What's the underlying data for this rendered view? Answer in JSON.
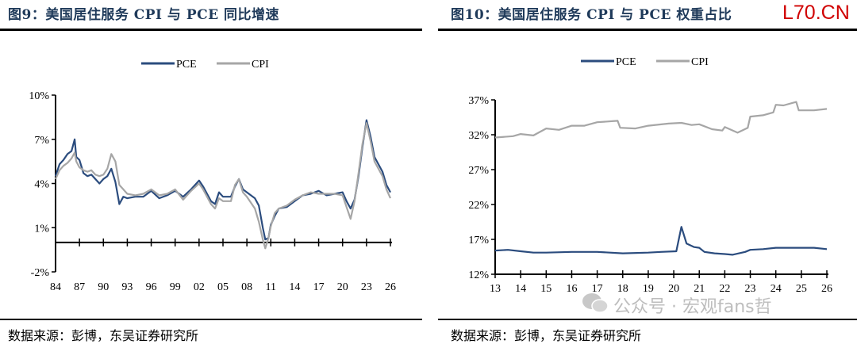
{
  "left": {
    "title": "图9：美国居住服务 CPI 与 PCE 同比增速",
    "source": "数据来源：彭博，东吴证券研究所"
  },
  "right": {
    "title": "图10：美国居住服务 CPI 与 PCE 权重占比",
    "source": "数据来源：彭博，东吴证券研究所"
  },
  "logo": "L70.CN",
  "watermark": "公众号 · 宏观fans哲",
  "colors": {
    "pce": "#2b4c7e",
    "cpi": "#a6a6a6"
  },
  "chart_data": [
    {
      "type": "line",
      "title": "美国居住服务 CPI 与 PCE 同比增速",
      "xlabel": "",
      "ylabel": "",
      "xlim": [
        1984,
        2026
      ],
      "ylim": [
        -2,
        10
      ],
      "yticks": [
        -2,
        1,
        4,
        7,
        10
      ],
      "ytick_labels": [
        "-2%",
        "1%",
        "4%",
        "7%",
        "10%"
      ],
      "xticks": [
        1984,
        1987,
        1990,
        1993,
        1996,
        1999,
        2002,
        2005,
        2008,
        2011,
        2014,
        2017,
        2020,
        2023,
        2026
      ],
      "xtick_labels": [
        "84",
        "87",
        "90",
        "93",
        "96",
        "99",
        "02",
        "05",
        "08",
        "11",
        "14",
        "17",
        "20",
        "23",
        "26"
      ],
      "legend": "top-center",
      "series": [
        {
          "name": "PCE",
          "points": [
            [
              1984,
              4.5
            ],
            [
              1984.5,
              5.3
            ],
            [
              1985,
              5.6
            ],
            [
              1985.5,
              6.0
            ],
            [
              1986,
              6.2
            ],
            [
              1986.4,
              7.0
            ],
            [
              1986.6,
              5.8
            ],
            [
              1987,
              5.6
            ],
            [
              1987.5,
              4.7
            ],
            [
              1988,
              4.5
            ],
            [
              1988.5,
              4.6
            ],
            [
              1989,
              4.3
            ],
            [
              1989.5,
              4.0
            ],
            [
              1990,
              4.3
            ],
            [
              1990.5,
              4.5
            ],
            [
              1991,
              5.0
            ],
            [
              1991.5,
              4.1
            ],
            [
              1992,
              2.6
            ],
            [
              1992.5,
              3.1
            ],
            [
              1993,
              3.0
            ],
            [
              1994,
              3.1
            ],
            [
              1995,
              3.1
            ],
            [
              1996,
              3.5
            ],
            [
              1997,
              3.0
            ],
            [
              1998,
              3.2
            ],
            [
              1999,
              3.5
            ],
            [
              2000,
              3.1
            ],
            [
              2001,
              3.6
            ],
            [
              2002,
              4.2
            ],
            [
              2002.5,
              3.8
            ],
            [
              2003.5,
              2.8
            ],
            [
              2004,
              2.6
            ],
            [
              2004.5,
              3.4
            ],
            [
              2005,
              3.1
            ],
            [
              2006,
              3.1
            ],
            [
              2006.5,
              3.8
            ],
            [
              2007,
              4.3
            ],
            [
              2007.5,
              3.6
            ],
            [
              2008,
              3.4
            ],
            [
              2009,
              3.0
            ],
            [
              2009.5,
              2.5
            ],
            [
              2010,
              1.0
            ],
            [
              2010.3,
              0.2
            ],
            [
              2010.7,
              0.3
            ],
            [
              2011,
              1.2
            ],
            [
              2011.5,
              1.8
            ],
            [
              2012,
              2.3
            ],
            [
              2013,
              2.4
            ],
            [
              2014,
              2.8
            ],
            [
              2015,
              3.2
            ],
            [
              2016,
              3.3
            ],
            [
              2017,
              3.5
            ],
            [
              2018,
              3.2
            ],
            [
              2019,
              3.3
            ],
            [
              2020,
              3.4
            ],
            [
              2020.5,
              2.8
            ],
            [
              2021,
              2.3
            ],
            [
              2021.5,
              2.9
            ],
            [
              2022,
              4.5
            ],
            [
              2022.5,
              6.5
            ],
            [
              2023,
              8.3
            ],
            [
              2023.5,
              7.2
            ],
            [
              2024,
              5.8
            ],
            [
              2025,
              4.8
            ],
            [
              2025.5,
              3.9
            ],
            [
              2026,
              3.4
            ]
          ]
        },
        {
          "name": "CPI",
          "points": [
            [
              1984,
              4.3
            ],
            [
              1984.5,
              4.9
            ],
            [
              1985,
              5.2
            ],
            [
              1985.5,
              5.4
            ],
            [
              1986,
              5.7
            ],
            [
              1986.4,
              6.1
            ],
            [
              1986.6,
              5.5
            ],
            [
              1987,
              5.1
            ],
            [
              1987.5,
              4.9
            ],
            [
              1988,
              4.8
            ],
            [
              1988.5,
              4.9
            ],
            [
              1989,
              4.6
            ],
            [
              1989.5,
              4.5
            ],
            [
              1990,
              4.6
            ],
            [
              1990.5,
              5.0
            ],
            [
              1991,
              6.0
            ],
            [
              1991.5,
              5.5
            ],
            [
              1992,
              3.9
            ],
            [
              1992.5,
              3.6
            ],
            [
              1993,
              3.3
            ],
            [
              1994,
              3.2
            ],
            [
              1995,
              3.3
            ],
            [
              1996,
              3.6
            ],
            [
              1997,
              3.2
            ],
            [
              1998,
              3.3
            ],
            [
              1999,
              3.6
            ],
            [
              2000,
              2.9
            ],
            [
              2001,
              3.5
            ],
            [
              2002,
              4.0
            ],
            [
              2002.5,
              3.6
            ],
            [
              2003.5,
              2.6
            ],
            [
              2004,
              2.3
            ],
            [
              2004.5,
              3.0
            ],
            [
              2005,
              2.8
            ],
            [
              2006,
              2.8
            ],
            [
              2006.5,
              3.9
            ],
            [
              2007,
              4.3
            ],
            [
              2007.5,
              3.4
            ],
            [
              2008,
              3.1
            ],
            [
              2009,
              2.3
            ],
            [
              2009.5,
              1.4
            ],
            [
              2010,
              0.2
            ],
            [
              2010.3,
              -0.4
            ],
            [
              2010.7,
              0.3
            ],
            [
              2011,
              1.1
            ],
            [
              2011.5,
              2.0
            ],
            [
              2012,
              2.3
            ],
            [
              2013,
              2.5
            ],
            [
              2014,
              2.9
            ],
            [
              2015,
              3.2
            ],
            [
              2016,
              3.4
            ],
            [
              2017,
              3.3
            ],
            [
              2018,
              3.3
            ],
            [
              2019,
              3.3
            ],
            [
              2020,
              3.2
            ],
            [
              2020.5,
              2.4
            ],
            [
              2021,
              1.6
            ],
            [
              2021.5,
              2.8
            ],
            [
              2022,
              4.7
            ],
            [
              2022.5,
              6.7
            ],
            [
              2023,
              8.1
            ],
            [
              2023.5,
              6.9
            ],
            [
              2024,
              5.5
            ],
            [
              2025,
              4.5
            ],
            [
              2025.5,
              3.6
            ],
            [
              2026,
              3.0
            ]
          ]
        }
      ]
    },
    {
      "type": "line",
      "title": "美国居住服务 CPI 与 PCE 权重占比",
      "xlabel": "",
      "ylabel": "",
      "xlim": [
        2013,
        2026
      ],
      "ylim": [
        12,
        37
      ],
      "yticks": [
        12,
        17,
        22,
        27,
        32,
        37
      ],
      "ytick_labels": [
        "12%",
        "17%",
        "22%",
        "27%",
        "32%",
        "37%"
      ],
      "xticks": [
        2013,
        2014,
        2015,
        2016,
        2017,
        2018,
        2019,
        2020,
        2021,
        2022,
        2023,
        2024,
        2025,
        2026
      ],
      "xtick_labels": [
        "13",
        "14",
        "15",
        "16",
        "17",
        "18",
        "19",
        "20",
        "21",
        "22",
        "23",
        "24",
        "25",
        "26"
      ],
      "legend": "top-center",
      "series": [
        {
          "name": "PCE",
          "points": [
            [
              2013,
              15.4
            ],
            [
              2013.5,
              15.5
            ],
            [
              2014,
              15.3
            ],
            [
              2014.5,
              15.1
            ],
            [
              2015,
              15.1
            ],
            [
              2016,
              15.2
            ],
            [
              2017,
              15.2
            ],
            [
              2018,
              15.0
            ],
            [
              2019,
              15.1
            ],
            [
              2019.5,
              15.2
            ],
            [
              2020.1,
              15.3
            ],
            [
              2020.3,
              18.8
            ],
            [
              2020.5,
              16.4
            ],
            [
              2020.8,
              15.9
            ],
            [
              2021,
              15.8
            ],
            [
              2021.2,
              15.2
            ],
            [
              2021.6,
              15.0
            ],
            [
              2022,
              14.9
            ],
            [
              2022.3,
              14.8
            ],
            [
              2022.8,
              15.2
            ],
            [
              2023,
              15.5
            ],
            [
              2023.5,
              15.6
            ],
            [
              2024,
              15.8
            ],
            [
              2025,
              15.8
            ],
            [
              2025.5,
              15.8
            ],
            [
              2026,
              15.6
            ]
          ]
        },
        {
          "name": "CPI",
          "points": [
            [
              2013,
              31.6
            ],
            [
              2013.7,
              31.8
            ],
            [
              2014,
              32.1
            ],
            [
              2014.5,
              31.9
            ],
            [
              2015,
              32.9
            ],
            [
              2015.5,
              32.7
            ],
            [
              2016,
              33.3
            ],
            [
              2016.5,
              33.3
            ],
            [
              2017,
              33.8
            ],
            [
              2017.8,
              34.0
            ],
            [
              2017.9,
              33.0
            ],
            [
              2018.5,
              32.9
            ],
            [
              2019,
              33.3
            ],
            [
              2019.8,
              33.6
            ],
            [
              2020.3,
              33.7
            ],
            [
              2020.7,
              33.4
            ],
            [
              2021,
              33.5
            ],
            [
              2021.5,
              32.8
            ],
            [
              2021.9,
              32.6
            ],
            [
              2022,
              33.1
            ],
            [
              2022.5,
              32.3
            ],
            [
              2022.9,
              33.0
            ],
            [
              2023,
              34.6
            ],
            [
              2023.5,
              34.8
            ],
            [
              2023.9,
              35.2
            ],
            [
              2024,
              36.3
            ],
            [
              2024.3,
              36.2
            ],
            [
              2024.8,
              36.7
            ],
            [
              2024.9,
              35.5
            ],
            [
              2025.5,
              35.5
            ],
            [
              2026,
              35.7
            ]
          ]
        }
      ]
    }
  ]
}
